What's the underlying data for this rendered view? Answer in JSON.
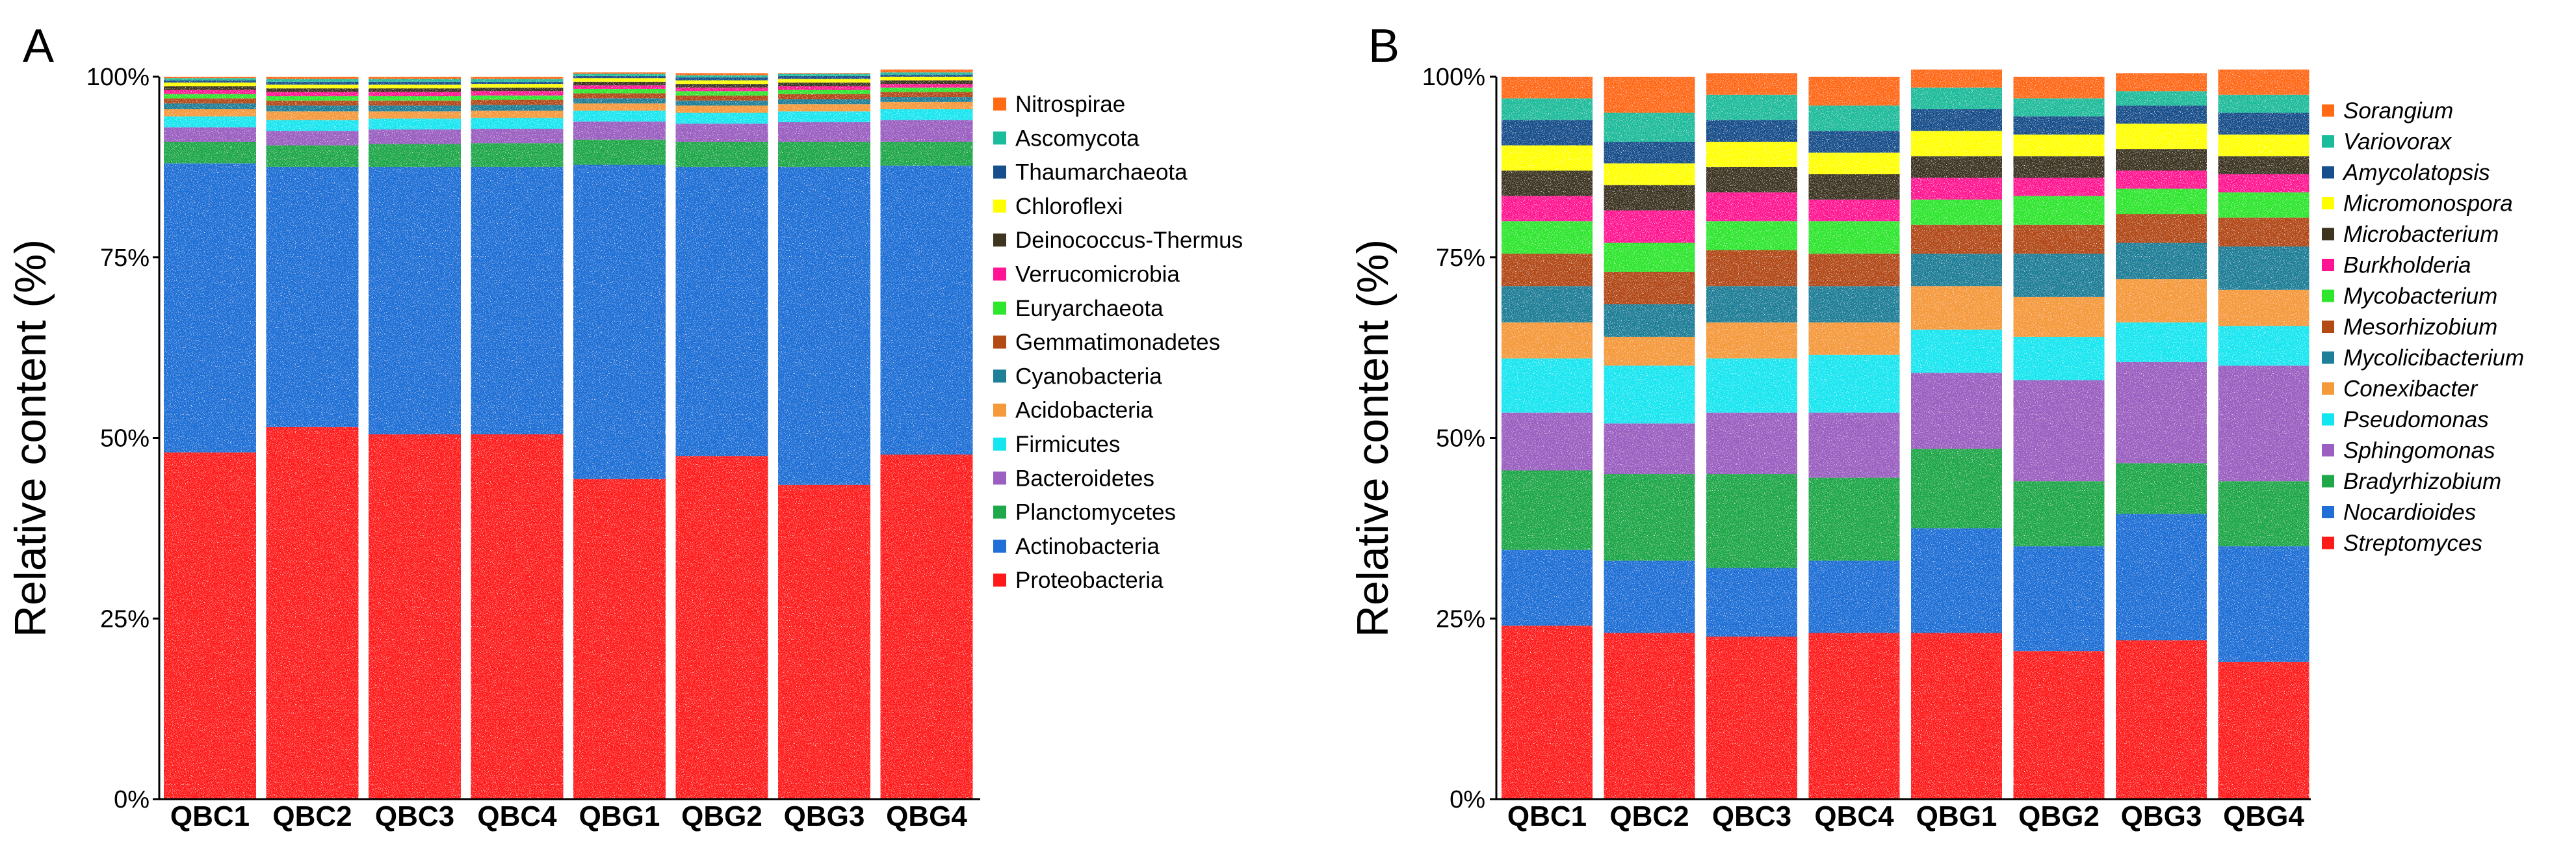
{
  "colors": [
    "#ff1a1a",
    "#1f6fd6",
    "#1fa84a",
    "#9b5ec1",
    "#14e6f0",
    "#f59a3a",
    "#1d7f98",
    "#b34a14",
    "#2ee62e",
    "#ff1493",
    "#3d3520",
    "#ffff00",
    "#174f8c",
    "#1abc9c",
    "#ff6a13"
  ],
  "chart_data": [
    {
      "type": "bar",
      "stacked": true,
      "panel_label": "A",
      "ylabel": "Relative  content (%)",
      "y_ticks": [
        "0%",
        "25%",
        "50%",
        "75%",
        "100%"
      ],
      "ylim": [
        0,
        100
      ],
      "categories": [
        "QBC1",
        "QBC2",
        "QBC3",
        "QBC4",
        "QBG1",
        "QBG2",
        "QBG3",
        "QBG4"
      ],
      "legend_italic": false,
      "series": [
        {
          "name": "Proteobacteria",
          "values": [
            48.0,
            51.5,
            50.5,
            50.5,
            44.3,
            47.5,
            43.5,
            47.7
          ]
        },
        {
          "name": "Actinobacteria",
          "values": [
            40.0,
            36.0,
            37.0,
            37.0,
            43.5,
            40.0,
            44.0,
            40.0
          ]
        },
        {
          "name": "Planctomycetes",
          "values": [
            3.0,
            3.0,
            3.2,
            3.3,
            3.5,
            3.5,
            3.5,
            3.3
          ]
        },
        {
          "name": "Bacteroidetes",
          "values": [
            2.0,
            2.0,
            2.0,
            2.0,
            2.5,
            2.5,
            2.7,
            3.0
          ]
        },
        {
          "name": "Firmicutes",
          "values": [
            1.5,
            1.5,
            1.5,
            1.5,
            1.5,
            1.5,
            1.5,
            1.5
          ]
        },
        {
          "name": "Acidobacteria",
          "values": [
            1.0,
            1.2,
            1.0,
            1.0,
            1.0,
            1.0,
            1.0,
            1.0
          ]
        },
        {
          "name": "Cyanobacteria",
          "values": [
            0.8,
            0.8,
            0.8,
            0.8,
            0.7,
            0.7,
            0.7,
            0.7
          ]
        },
        {
          "name": "Gemmatimonadetes",
          "values": [
            0.7,
            0.7,
            0.7,
            0.7,
            0.7,
            0.7,
            0.7,
            0.7
          ]
        },
        {
          "name": "Euryarchaeota",
          "values": [
            0.6,
            0.6,
            0.6,
            0.6,
            0.6,
            0.6,
            0.6,
            0.6
          ]
        },
        {
          "name": "Verrucomicrobia",
          "values": [
            0.6,
            0.6,
            0.6,
            0.6,
            0.5,
            0.5,
            0.5,
            0.5
          ]
        },
        {
          "name": "Deinococcus-Thermus",
          "values": [
            0.5,
            0.5,
            0.5,
            0.5,
            0.5,
            0.5,
            0.5,
            0.5
          ]
        },
        {
          "name": "Chloroflexi",
          "values": [
            0.5,
            0.5,
            0.5,
            0.5,
            0.5,
            0.5,
            0.5,
            0.5
          ]
        },
        {
          "name": "Thaumarchaeota",
          "values": [
            0.3,
            0.4,
            0.4,
            0.3,
            0.3,
            0.4,
            0.4,
            0.3
          ]
        },
        {
          "name": "Ascomycota",
          "values": [
            0.3,
            0.4,
            0.4,
            0.4,
            0.3,
            0.3,
            0.3,
            0.3
          ]
        },
        {
          "name": "Nitrospirae",
          "values": [
            0.2,
            0.3,
            0.3,
            0.3,
            0.2,
            0.3,
            0.1,
            0.4
          ]
        }
      ]
    },
    {
      "type": "bar",
      "stacked": true,
      "panel_label": "B",
      "ylabel": "Relative  content (%)",
      "y_ticks": [
        "0%",
        "25%",
        "50%",
        "75%",
        "100%"
      ],
      "ylim": [
        0,
        100
      ],
      "categories": [
        "QBC1",
        "QBC2",
        "QBC3",
        "QBC4",
        "QBG1",
        "QBG2",
        "QBG3",
        "QBG4"
      ],
      "legend_italic": true,
      "series": [
        {
          "name": "Streptomyces",
          "values": [
            24.0,
            23.0,
            22.5,
            23.0,
            23.0,
            20.5,
            22.0,
            19.0
          ]
        },
        {
          "name": "Nocardioides",
          "values": [
            10.5,
            10.0,
            9.5,
            10.0,
            14.5,
            14.5,
            17.5,
            16.0
          ]
        },
        {
          "name": "Bradyrhizobium",
          "values": [
            11.0,
            12.0,
            13.0,
            11.5,
            11.0,
            9.0,
            7.0,
            9.0
          ]
        },
        {
          "name": "Sphingomonas",
          "values": [
            8.0,
            7.0,
            8.5,
            9.0,
            10.5,
            14.0,
            14.0,
            16.0
          ]
        },
        {
          "name": "Pseudomonas",
          "values": [
            7.5,
            8.0,
            7.5,
            8.0,
            6.0,
            6.0,
            5.5,
            5.5
          ]
        },
        {
          "name": "Conexibacter",
          "values": [
            5.0,
            4.0,
            5.0,
            4.5,
            6.0,
            5.5,
            6.0,
            5.0
          ]
        },
        {
          "name": "Mycolicibacterium",
          "values": [
            5.0,
            4.5,
            5.0,
            5.0,
            4.5,
            6.0,
            5.0,
            6.0
          ]
        },
        {
          "name": "Mesorhizobium",
          "values": [
            4.5,
            4.5,
            5.0,
            4.5,
            4.0,
            4.0,
            4.0,
            4.0
          ]
        },
        {
          "name": "Mycobacterium",
          "values": [
            4.5,
            4.0,
            4.0,
            4.5,
            3.5,
            4.0,
            3.5,
            3.5
          ]
        },
        {
          "name": "Burkholderia",
          "values": [
            3.5,
            4.5,
            4.0,
            3.0,
            3.0,
            2.5,
            2.5,
            2.5
          ]
        },
        {
          "name": "Microbacterium",
          "values": [
            3.5,
            3.5,
            3.5,
            3.5,
            3.0,
            3.0,
            3.0,
            2.5
          ]
        },
        {
          "name": "Micromonospora",
          "values": [
            3.5,
            3.0,
            3.5,
            3.0,
            3.5,
            3.0,
            3.5,
            3.0
          ]
        },
        {
          "name": "Amycolatopsis",
          "values": [
            3.5,
            3.0,
            3.0,
            3.0,
            3.0,
            2.5,
            2.5,
            3.0
          ]
        },
        {
          "name": "Variovorax",
          "values": [
            3.0,
            4.0,
            3.5,
            3.5,
            3.0,
            2.5,
            2.0,
            2.5
          ]
        },
        {
          "name": "Sorangium",
          "values": [
            3.0,
            5.0,
            3.0,
            4.0,
            2.5,
            3.0,
            2.5,
            3.5
          ]
        }
      ]
    }
  ]
}
